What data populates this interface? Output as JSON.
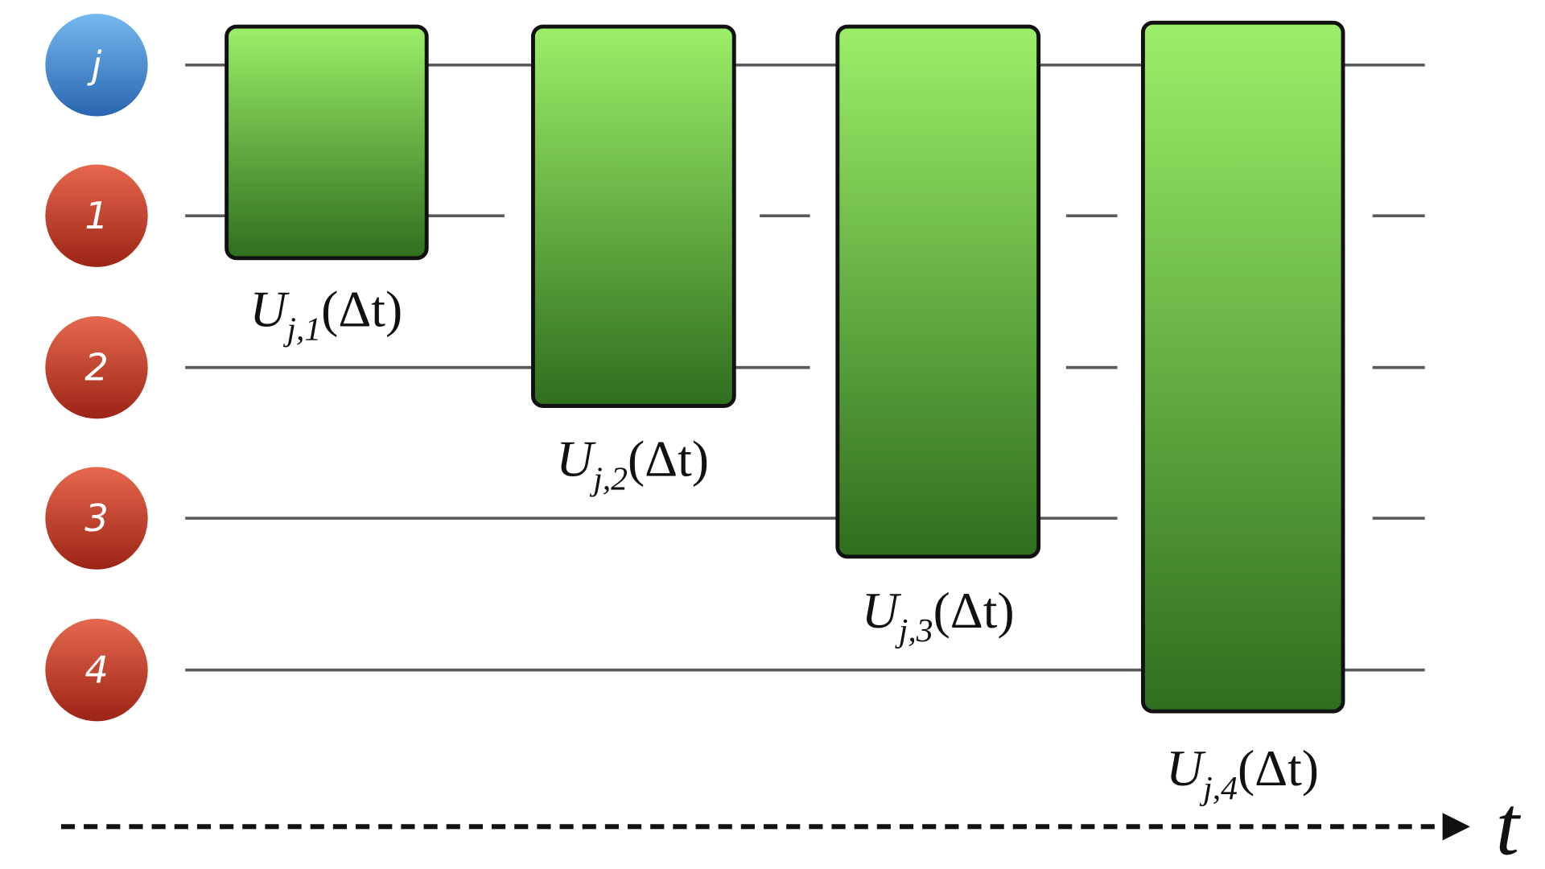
{
  "nodes": [
    {
      "label": "j"
    },
    {
      "label": "1"
    },
    {
      "label": "2"
    },
    {
      "label": "3"
    },
    {
      "label": "4"
    }
  ],
  "gates": [
    {
      "symbol": "U",
      "subscript": "j,1",
      "argument": "(Δt)"
    },
    {
      "symbol": "U",
      "subscript": "j,2",
      "argument": "(Δt)"
    },
    {
      "symbol": "U",
      "subscript": "j,3",
      "argument": "(Δt)"
    },
    {
      "symbol": "U",
      "subscript": "j,4",
      "argument": "(Δt)"
    }
  ],
  "time_axis": {
    "label": "t"
  }
}
